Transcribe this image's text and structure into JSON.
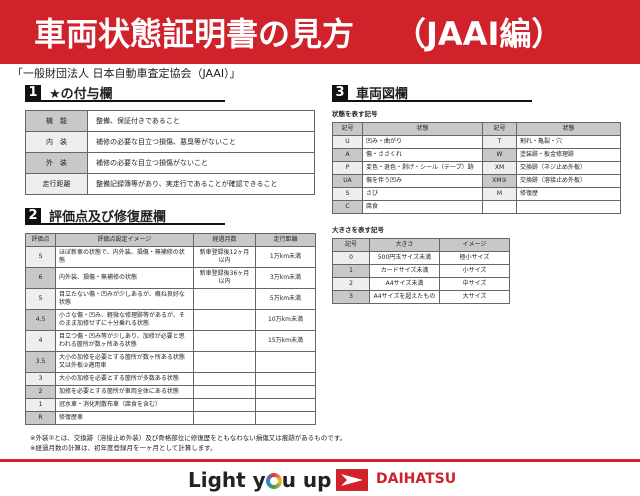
{
  "header": {
    "title": "車両状態証明書の見方",
    "suffix": "（JAAI編）"
  },
  "org": "「一般財団法人 日本自動車査定協会（JAAI）」",
  "section1": {
    "num": "1",
    "title": "★の付与欄",
    "rows": [
      {
        "label": "機　能",
        "text": "整備、保証付きであること"
      },
      {
        "label": "内　装",
        "text": "補修の必要な目立つ損傷、悪臭等がないこと"
      },
      {
        "label": "外　装",
        "text": "補修の必要な目立つ損傷がないこと"
      },
      {
        "label": "走行距離",
        "text": "整備記録簿等があり、実走行であることが確認できること"
      }
    ]
  },
  "section2": {
    "num": "2",
    "title": "評価点及び修復歴欄",
    "headers": [
      "評価点",
      "評価点設定イメージ",
      "経過月数",
      "走行距離"
    ],
    "rows": [
      [
        "S",
        "ほぼ新車の状態で、内外装、損傷・無補修の状態",
        "新車登録後12ヶ月以内",
        "1万km未満"
      ],
      [
        "6",
        "内外装、損傷・無補修の状態",
        "新車登録後36ヶ月以内",
        "3万km未満"
      ],
      [
        "5",
        "目立たない傷・凹みが少しあるが、概ね良好な状態",
        "",
        "5万km未満"
      ],
      [
        "4.5",
        "小さな傷・凹み、軽微な修理跡等があるが、そのまま加修せずに十分乗れる状態",
        "",
        "10万km未満"
      ],
      [
        "4",
        "目立つ傷・凹み等が少しあり、加修が必要と思われる箇所が数ヶ所ある状態",
        "",
        "15万km未満"
      ],
      [
        "3.5",
        "大小の加修を必要とする箇所が数ヶ所ある状態又は外板②適用車",
        "",
        ""
      ],
      [
        "3",
        "大小の加修を必要とする箇所が多数ある状態",
        "",
        ""
      ],
      [
        "2",
        "加修を必要とする箇所が車両全体にある状態",
        "",
        ""
      ],
      [
        "1",
        "冠水車・消化剤散布車（腐食を含む）",
        "",
        ""
      ],
      [
        "R",
        "修復歴車",
        "",
        ""
      ]
    ]
  },
  "section3": {
    "num": "3",
    "title": "車両図欄",
    "state_label": "状態を表す記号",
    "state_headers": [
      "記号",
      "状態",
      "記号",
      "状態"
    ],
    "state_rows": [
      [
        "U",
        "凹み・曲がり",
        "T",
        "割れ・亀裂・穴"
      ],
      [
        "A",
        "傷・ささくれ",
        "W",
        "塗装跡・板金修理跡"
      ],
      [
        "P",
        "変色・退色・剥げ・シール（テープ）跡",
        "XM",
        "交換跡（ネジ止め外板）"
      ],
      [
        "UA",
        "傷を伴う凹み",
        "XM②",
        "交換跡（溶接止め外板）"
      ],
      [
        "S",
        "さび",
        "M",
        "修復歴"
      ],
      [
        "C",
        "腐食",
        "",
        ""
      ]
    ],
    "size_label": "大きさを表す記号",
    "size_headers": [
      "記号",
      "大きさ",
      "イメージ"
    ],
    "size_rows": [
      [
        "0",
        "500円玉サイズ未満",
        "極小サイズ"
      ],
      [
        "1",
        "カードサイズ未満",
        "小サイズ"
      ],
      [
        "2",
        "A4サイズ未満",
        "中サイズ"
      ],
      [
        "3",
        "A4サイズを超えたもの",
        "大サイズ"
      ]
    ]
  },
  "notes": [
    "※外装②とは、交換跡（溶接止め外装）及び骨格部位に修復歴をともなわない損傷又は痕跡があるものです。",
    "※経過月数の計算は、初年度登録月を一ヶ月として計算します。"
  ],
  "footer": {
    "slogan_pre": "Light y",
    "slogan_post": "u up",
    "brand": "DAIHATSU"
  },
  "colors": {
    "accent": "#d0222b"
  }
}
